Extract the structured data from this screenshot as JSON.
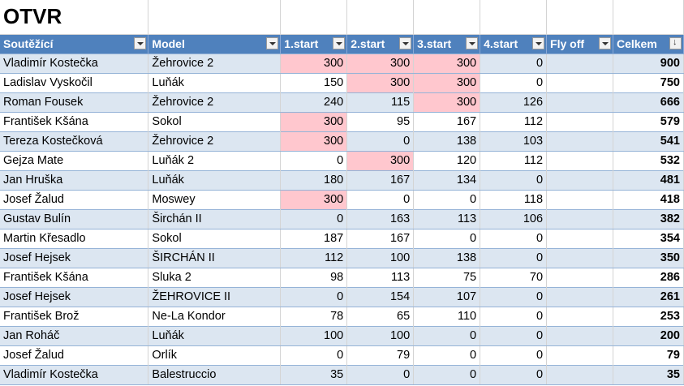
{
  "title": "OTVR",
  "headers": [
    "Soutěžící",
    "Model",
    "1.start",
    "2.start",
    "3.start",
    "4.start",
    "Fly off",
    "Celkem"
  ],
  "highlight_color": "#ffc7ce",
  "header_color": "#4f81bd",
  "band_color": "#dce6f1",
  "rows": [
    {
      "name": "Vladimír Kostečka",
      "model": "Žehrovice 2",
      "s1": "300",
      "s2": "300",
      "s3": "300",
      "s4": "0",
      "fly": "",
      "total": "900",
      "hl": [
        1,
        1,
        1,
        0
      ]
    },
    {
      "name": "Ladislav Vyskočil",
      "model": "Luňák",
      "s1": "150",
      "s2": "300",
      "s3": "300",
      "s4": "0",
      "fly": "",
      "total": "750",
      "hl": [
        0,
        1,
        1,
        0
      ]
    },
    {
      "name": "Roman Fousek",
      "model": "Žehrovice 2",
      "s1": "240",
      "s2": "115",
      "s3": "300",
      "s4": "126",
      "fly": "",
      "total": "666",
      "hl": [
        0,
        0,
        1,
        0
      ]
    },
    {
      "name": "František  Kšána",
      "model": "Sokol",
      "s1": "300",
      "s2": "95",
      "s3": "167",
      "s4": "112",
      "fly": "",
      "total": "579",
      "hl": [
        1,
        0,
        0,
        0
      ]
    },
    {
      "name": "Tereza Kostečková",
      "model": "Žehrovice 2",
      "s1": "300",
      "s2": "0",
      "s3": "138",
      "s4": "103",
      "fly": "",
      "total": "541",
      "hl": [
        1,
        0,
        0,
        0
      ]
    },
    {
      "name": "Gejza  Mate",
      "model": "Luňák 2",
      "s1": "0",
      "s2": "300",
      "s3": "120",
      "s4": "112",
      "fly": "",
      "total": "532",
      "hl": [
        0,
        1,
        0,
        0
      ]
    },
    {
      "name": "Jan Hruška",
      "model": "Luňák",
      "s1": "180",
      "s2": "167",
      "s3": "134",
      "s4": "0",
      "fly": "",
      "total": "481",
      "hl": [
        0,
        0,
        0,
        0
      ]
    },
    {
      "name": "Josef Žalud",
      "model": "Moswey",
      "s1": "300",
      "s2": "0",
      "s3": "0",
      "s4": "118",
      "fly": "",
      "total": "418",
      "hl": [
        1,
        0,
        0,
        0
      ]
    },
    {
      "name": "Gustav Bulín",
      "model": "Širchán II",
      "s1": "0",
      "s2": "163",
      "s3": "113",
      "s4": "106",
      "fly": "",
      "total": "382",
      "hl": [
        0,
        0,
        0,
        0
      ]
    },
    {
      "name": "Martin Křesadlo",
      "model": "Sokol",
      "s1": "187",
      "s2": "167",
      "s3": "0",
      "s4": "0",
      "fly": "",
      "total": "354",
      "hl": [
        0,
        0,
        0,
        0
      ]
    },
    {
      "name": "Josef Hejsek",
      "model": "ŠIRCHÁN II",
      "s1": "112",
      "s2": "100",
      "s3": "138",
      "s4": "0",
      "fly": "",
      "total": "350",
      "hl": [
        0,
        0,
        0,
        0
      ]
    },
    {
      "name": "František  Kšána",
      "model": "Sluka 2",
      "s1": "98",
      "s2": "113",
      "s3": "75",
      "s4": "70",
      "fly": "",
      "total": "286",
      "hl": [
        0,
        0,
        0,
        0
      ]
    },
    {
      "name": "Josef Hejsek",
      "model": "ŽEHROVICE II",
      "s1": "0",
      "s2": "154",
      "s3": "107",
      "s4": "0",
      "fly": "",
      "total": "261",
      "hl": [
        0,
        0,
        0,
        0
      ]
    },
    {
      "name": "František  Brož",
      "model": "Ne-La Kondor",
      "s1": "78",
      "s2": "65",
      "s3": "110",
      "s4": "0",
      "fly": "",
      "total": "253",
      "hl": [
        0,
        0,
        0,
        0
      ]
    },
    {
      "name": "Jan Roháč",
      "model": "Luňák",
      "s1": "100",
      "s2": "100",
      "s3": "0",
      "s4": "0",
      "fly": "",
      "total": "200",
      "hl": [
        0,
        0,
        0,
        0
      ]
    },
    {
      "name": "Josef Žalud",
      "model": "Orlík",
      "s1": "0",
      "s2": "79",
      "s3": "0",
      "s4": "0",
      "fly": "",
      "total": "79",
      "hl": [
        0,
        0,
        0,
        0
      ]
    },
    {
      "name": "Vladimír Kostečka",
      "model": "Balestruccio",
      "s1": "35",
      "s2": "0",
      "s3": "0",
      "s4": "0",
      "fly": "",
      "total": "35",
      "hl": [
        0,
        0,
        0,
        0
      ]
    }
  ]
}
